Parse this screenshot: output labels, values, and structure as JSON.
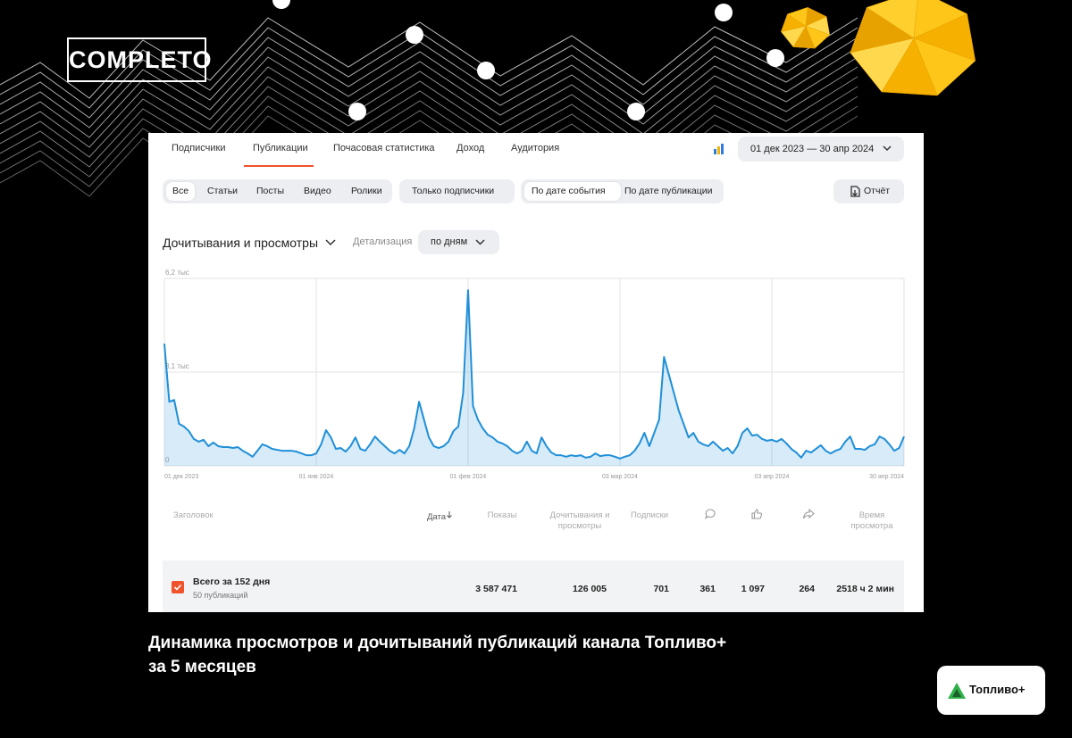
{
  "brand": "COMPLETO",
  "tabs": [
    "Подписчики",
    "Публикации",
    "Почасовая статистика",
    "Доход",
    "Аудитория"
  ],
  "date_range": "01 дек 2023 — 30 апр 2024",
  "filters": {
    "type": [
      "Все",
      "Статьи",
      "Посты",
      "Видео",
      "Ролики"
    ],
    "audience": "Только подписчики",
    "date_mode": [
      "По дате события",
      "По дате публикации"
    ],
    "report": "Отчёт"
  },
  "chart_controls": {
    "metric": "Дочитывания и просмотры",
    "detail_label": "Детализация",
    "detail": "по дням"
  },
  "chart_data": {
    "type": "line",
    "categories": [
      "01 дек 2023",
      null,
      null,
      null,
      null,
      null,
      null,
      null,
      null,
      null,
      null,
      null,
      null,
      null,
      null,
      null,
      null,
      null,
      null,
      null,
      null,
      null,
      null,
      null,
      null,
      null,
      null,
      null,
      null,
      null,
      null,
      "01 янв 2024",
      null,
      null,
      null,
      null,
      null,
      null,
      null,
      null,
      null,
      null,
      null,
      null,
      null,
      null,
      null,
      null,
      null,
      null,
      null,
      null,
      null,
      null,
      null,
      null,
      null,
      null,
      null,
      null,
      null,
      null,
      "01 фев 2024",
      null,
      null,
      null,
      null,
      null,
      null,
      null,
      null,
      null,
      null,
      null,
      null,
      null,
      null,
      null,
      null,
      null,
      null,
      null,
      null,
      null,
      null,
      null,
      null,
      null,
      null,
      null,
      null,
      null,
      null,
      "03 мар 2024",
      null,
      null,
      null,
      null,
      null,
      null,
      null,
      null,
      null,
      null,
      null,
      null,
      null,
      null,
      null,
      null,
      null,
      null,
      null,
      null,
      null,
      null,
      null,
      null,
      null,
      null,
      null,
      null,
      null,
      null,
      "03 апр 2024",
      null,
      null,
      null,
      null,
      null,
      null,
      null,
      null,
      null,
      null,
      null,
      null,
      null,
      null,
      null,
      null,
      null,
      null,
      null,
      null,
      null,
      null,
      null,
      null,
      null,
      null,
      "30 апр 2024"
    ],
    "series": [
      {
        "color": "#1f8fd8",
        "values": [
          4040,
          2120,
          2180,
          1390,
          1300,
          1150,
          890,
          800,
          860,
          650,
          770,
          650,
          620,
          620,
          590,
          620,
          500,
          410,
          300,
          500,
          710,
          650,
          560,
          530,
          500,
          500,
          500,
          470,
          410,
          350,
          350,
          410,
          710,
          1180,
          940,
          560,
          590,
          470,
          650,
          940,
          560,
          500,
          710,
          970,
          800,
          650,
          500,
          410,
          530,
          410,
          650,
          1240,
          2120,
          1530,
          940,
          650,
          590,
          650,
          800,
          1150,
          1300,
          2420,
          5810,
          1980,
          1530,
          1240,
          1030,
          940,
          800,
          740,
          650,
          500,
          410,
          500,
          800,
          500,
          410,
          940,
          650,
          440,
          350,
          350,
          300,
          350,
          320,
          350,
          270,
          300,
          410,
          320,
          350,
          350,
          300,
          240,
          300,
          350,
          500,
          740,
          1090,
          650,
          1090,
          1530,
          3600,
          3010,
          2420,
          1830,
          1390,
          940,
          1090,
          800,
          710,
          650,
          800,
          650,
          500,
          590,
          410,
          650,
          1090,
          1240,
          1000,
          1030,
          890,
          830,
          860,
          800,
          890,
          740,
          560,
          440,
          270,
          500,
          440,
          560,
          680,
          500,
          410,
          500,
          560,
          800,
          970,
          560,
          560,
          530,
          650,
          710,
          970,
          890,
          710,
          500,
          590,
          970
        ]
      }
    ],
    "ylim": [
      0,
      6200
    ],
    "yticks": [
      0,
      {
        "value": 3100,
        "label": "3,1 тыс"
      },
      {
        "value": 6200,
        "label": "6,2 тыс"
      }
    ],
    "grid": true
  },
  "table": {
    "headers": [
      "Заголовок",
      "Дата",
      "Показы",
      "Дочитывания и просмотры",
      "Подписки",
      "Время просмотра"
    ],
    "total": {
      "title": "Всего за 152 дня",
      "subtitle": "50 публикаций",
      "values": [
        "3 587 471",
        "126 005",
        "701",
        "361",
        "1 097",
        "264",
        "2518 ч 2 мин"
      ]
    }
  },
  "caption": [
    "Динамика просмотров и дочитываний публикаций канала Топливо+",
    "за 5 месяцев"
  ],
  "badge": "Топливо+"
}
